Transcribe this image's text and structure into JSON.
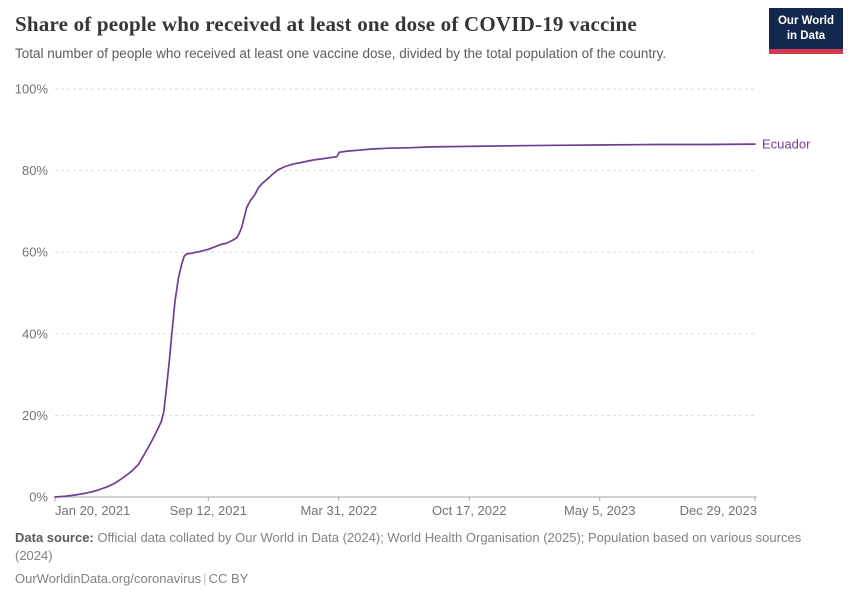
{
  "chart_data": {
    "type": "line",
    "title": "Share of people who received at least one dose of COVID-19 vaccine",
    "subtitle": "Total number of people who received at least one vaccine dose, divided by the total population of the country.",
    "x_range": [
      "2021-01-20",
      "2023-12-29"
    ],
    "ylim": [
      0,
      100
    ],
    "grid": "horizontal-dashed",
    "legend_position": "right-of-line",
    "y_ticks": [
      0,
      20,
      40,
      60,
      80,
      100
    ],
    "y_tick_suffix": "%",
    "x_ticks": [
      {
        "label": "Jan 20, 2021",
        "date": "2021-01-20"
      },
      {
        "label": "Sep 12, 2021",
        "date": "2021-09-12"
      },
      {
        "label": "Mar 31, 2022",
        "date": "2022-03-31"
      },
      {
        "label": "Oct 17, 2022",
        "date": "2022-10-17"
      },
      {
        "label": "May 5, 2023",
        "date": "2023-05-05"
      },
      {
        "label": "Dec 29, 2023",
        "date": "2023-12-29"
      }
    ],
    "series": [
      {
        "name": "Ecuador",
        "color": "#6d3e91",
        "points": [
          [
            "2021-01-20",
            0.0
          ],
          [
            "2021-02-05",
            0.2
          ],
          [
            "2021-02-20",
            0.5
          ],
          [
            "2021-03-10",
            1.0
          ],
          [
            "2021-03-25",
            1.6
          ],
          [
            "2021-04-10",
            2.5
          ],
          [
            "2021-04-22",
            3.4
          ],
          [
            "2021-05-05",
            4.8
          ],
          [
            "2021-05-15",
            6.0
          ],
          [
            "2021-05-18",
            6.4
          ],
          [
            "2021-05-28",
            8.0
          ],
          [
            "2021-06-06",
            10.5
          ],
          [
            "2021-06-15",
            13.0
          ],
          [
            "2021-06-24",
            15.8
          ],
          [
            "2021-07-02",
            18.5
          ],
          [
            "2021-07-06",
            21.0
          ],
          [
            "2021-07-10",
            27.0
          ],
          [
            "2021-07-14",
            33.0
          ],
          [
            "2021-07-18",
            40.0
          ],
          [
            "2021-07-23",
            48.0
          ],
          [
            "2021-07-28",
            53.5
          ],
          [
            "2021-08-02",
            57.0
          ],
          [
            "2021-08-06",
            59.0
          ],
          [
            "2021-08-10",
            59.6
          ],
          [
            "2021-08-16",
            59.7
          ],
          [
            "2021-08-22",
            59.9
          ],
          [
            "2021-08-28",
            60.1
          ],
          [
            "2021-09-05",
            60.4
          ],
          [
            "2021-09-12",
            60.7
          ],
          [
            "2021-09-20",
            61.2
          ],
          [
            "2021-09-28",
            61.7
          ],
          [
            "2021-10-03",
            62.0
          ],
          [
            "2021-10-08",
            62.1
          ],
          [
            "2021-10-14",
            62.5
          ],
          [
            "2021-10-20",
            63.0
          ],
          [
            "2021-10-26",
            63.6
          ],
          [
            "2021-10-29",
            64.5
          ],
          [
            "2021-11-02",
            66.0
          ],
          [
            "2021-11-06",
            68.5
          ],
          [
            "2021-11-10",
            71.0
          ],
          [
            "2021-11-16",
            72.8
          ],
          [
            "2021-11-22",
            74.0
          ],
          [
            "2021-11-28",
            75.8
          ],
          [
            "2021-12-04",
            76.9
          ],
          [
            "2021-12-12",
            78.0
          ],
          [
            "2021-12-20",
            79.2
          ],
          [
            "2021-12-28",
            80.2
          ],
          [
            "2022-01-08",
            81.0
          ],
          [
            "2022-01-20",
            81.6
          ],
          [
            "2022-02-05",
            82.1
          ],
          [
            "2022-02-20",
            82.6
          ],
          [
            "2022-03-10",
            83.0
          ],
          [
            "2022-03-28",
            83.4
          ],
          [
            "2022-04-01",
            84.5
          ],
          [
            "2022-04-15",
            84.8
          ],
          [
            "2022-05-01",
            85.0
          ],
          [
            "2022-05-20",
            85.3
          ],
          [
            "2022-06-15",
            85.5
          ],
          [
            "2022-07-15",
            85.6
          ],
          [
            "2022-08-20",
            85.8
          ],
          [
            "2022-10-01",
            85.9
          ],
          [
            "2022-11-15",
            86.0
          ],
          [
            "2023-01-01",
            86.1
          ],
          [
            "2023-03-01",
            86.2
          ],
          [
            "2023-05-20",
            86.3
          ],
          [
            "2023-08-01",
            86.4
          ],
          [
            "2023-10-15",
            86.4
          ],
          [
            "2023-12-29",
            86.5
          ]
        ]
      }
    ]
  },
  "logo": {
    "line1": "Our World",
    "line2": "in Data"
  },
  "colors": {
    "series_purple": "#6d3e91",
    "logo_navy": "#12294d",
    "logo_red": "#d1394e",
    "gridline": "#dcdcdc",
    "axis_line": "#a5a5a5",
    "tick_text": "#737373"
  },
  "footer": {
    "sources_label": "Data source:",
    "sources_text": "Official data collated by Our World in Data (2024); World Health Organisation (2025); Population based on various sources (2024)",
    "url": "OurWorldinData.org/coronavirus",
    "separator": "|",
    "license": "CC BY"
  }
}
